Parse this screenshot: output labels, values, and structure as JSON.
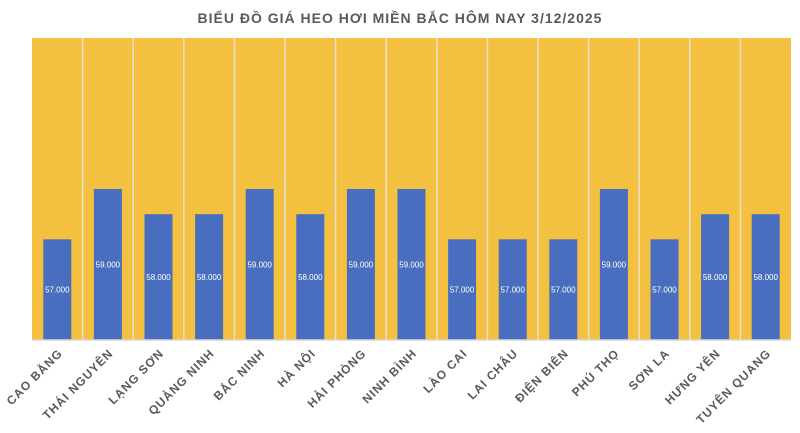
{
  "chart_data": {
    "type": "bar",
    "title": "BIỂU ĐỒ GIÁ HEO HƠI MIỀN BẮC HÔM NAY 3/12/2025",
    "categories": [
      "CAO BẰNG",
      "THÁI NGUYÊN",
      "LẠNG SƠN",
      "QUẢNG NINH",
      "BẮC NINH",
      "HÀ NỘI",
      "HẢI PHÒNG",
      "NINH BÌNH",
      "LÀO CAI",
      "LAI CHÂU",
      "ĐIỆN BIÊN",
      "PHÚ THỌ",
      "SƠN LA",
      "HƯNG YÊN",
      "TUYÊN QUANG"
    ],
    "values": [
      57,
      59,
      58,
      58,
      59,
      58,
      59,
      59,
      57,
      57,
      57,
      59,
      57,
      58,
      58
    ],
    "data_labels": [
      "57.000",
      "59.000",
      "58.000",
      "58.000",
      "59.000",
      "58.000",
      "59.000",
      "59.000",
      "57.000",
      "57.000",
      "57.000",
      "59.000",
      "57.000",
      "58.000",
      "58.000"
    ],
    "xlabel": "",
    "ylabel": "",
    "ylim": [
      53,
      65
    ],
    "grid": false,
    "colors": {
      "bar": "#4a6ebf",
      "background_band": "#f3c040",
      "separator": "#e8e0d0",
      "title": "#595959",
      "label": "#595959"
    }
  }
}
